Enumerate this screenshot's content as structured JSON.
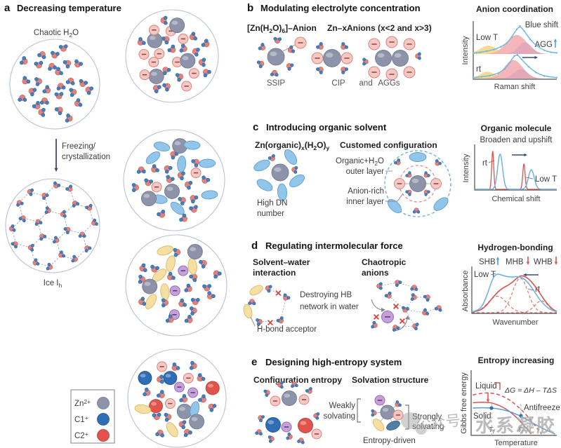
{
  "colors": {
    "zn_fill": "#8d94a9",
    "zn_stroke": "#70798f",
    "c1_fill": "#2f6db5",
    "c1_stroke": "#24568f",
    "c2_fill": "#e0544c",
    "c2_stroke": "#b93f39",
    "water_o": "#e0837e",
    "water_o_stroke": "#c2655f",
    "water_h": "#4181c2",
    "water_h_stroke": "#2f63a0",
    "anion_pink": "#f6c8c3",
    "anion_pink_stroke": "#dd837d",
    "minus_pink": "#8a423c",
    "anion_purple": "#c6a0d8",
    "anion_purple_stroke": "#9a6cb8",
    "minus_purple": "#533b66",
    "oval_blue": "#92c5ea",
    "oval_blue_stroke": "#5f9fd0",
    "oval_yellow": "#f5dfa2",
    "oval_yellow_stroke": "#dcb964",
    "oval_dark": "#4e7fa5",
    "oval_dark_stroke": "#35607f",
    "circle_stroke": "#b9c3d4",
    "bond": "#9fb0c8",
    "pointer": "#8a8a8a",
    "navy": "#3c4a70",
    "xmark": "#d9413a",
    "curve_blue": "#6fb3e0",
    "curve_red": "#d9534f",
    "blue_arrow": "#4a9ede",
    "fill_pink": "#f2aeb4",
    "fill_yellow": "#f3d98e",
    "fill_mauve": "#d8a0b8",
    "axis": "#4d4d4d",
    "dash_blue": "#66aede",
    "dash_red": "#e08a85",
    "dot_blue": "#2f6db5",
    "bracket_red": "#b5413c",
    "watermark": "#a8a8a8"
  },
  "panel_a": {
    "tag": "a",
    "title": "Decreasing temperature",
    "chaotic": {
      "main": "Chaotic H",
      "sub": "2",
      "end": "O"
    },
    "freezing": [
      "Freezing/",
      "crystallization"
    ],
    "ice": {
      "main": "Ice I",
      "sub": "h"
    },
    "legend": [
      {
        "base": "Zn",
        "sup": "2+",
        "color": "#8d94a9"
      },
      {
        "base": "C1",
        "sup": "+",
        "color": "#2f6db5"
      },
      {
        "base": "C2",
        "sup": "+",
        "color": "#e0544c"
      }
    ]
  },
  "panel_b": {
    "tag": "b",
    "title": "Modulating electrolyte concentration",
    "formula1": {
      "p1": "[Zn(H",
      "s1": "2",
      "p2": "O)",
      "s2": "6",
      "p3": "]–Anion"
    },
    "formula2": "Zn–xAnions (x<2 and x>3)",
    "ssip": "SSIP",
    "cip": "CIP",
    "and": "and",
    "aggs": "AGGs",
    "chart": {
      "title": "Anion coordination",
      "ylabel": "Intensity",
      "xlabel": "Raman shift",
      "low_t": "Low T",
      "rt": "rt",
      "blue_shift": "Blue shift",
      "agg": "AGG"
    }
  },
  "panel_c": {
    "tag": "c",
    "title": "Introducing organic solvent",
    "formula": {
      "p1": "Zn(organic)",
      "s1": "x",
      "p2": "(H",
      "s2": "2",
      "p3": "O)",
      "s3": "y"
    },
    "customed": "Customed configuration",
    "high_dn": [
      "High DN",
      "number"
    ],
    "outer_layer": {
      "l1a": "Organic+H",
      "l1s": "2",
      "l1b": "O",
      "l2": "outer layer"
    },
    "inner_layer": {
      "l1": "Anion-rich",
      "l2": "inner layer"
    },
    "chart": {
      "title": "Organic molecule",
      "subtitle": "Broaden and upshift",
      "ylabel": "Intensity",
      "xlabel": "Chemical shift",
      "rt": "rt",
      "low_t": "Low T"
    }
  },
  "panel_d": {
    "tag": "d",
    "title": "Regulating intermolecular force",
    "solvent_water": [
      "Solvent–water",
      "interaction"
    ],
    "chaotropic": [
      "Chaotropic",
      "anions"
    ],
    "destroying": [
      "Destroying HB",
      "network in water"
    ],
    "acceptor": "H-bond acceptor",
    "chart": {
      "title": "Hydrogen-bonding",
      "shb": "SHB",
      "mhb": "MHB",
      "whb": "WHB",
      "ylabel": "Absorbance",
      "xlabel": "Wavenumber",
      "low_t": "Low T",
      "rt": "rt"
    }
  },
  "panel_e": {
    "tag": "e",
    "title": "Designing high-entropy system",
    "config": "Configuration entropy",
    "solvation": "Solvation structure",
    "weakly": [
      "Weakly",
      "solvating"
    ],
    "strongly": [
      "Strongly",
      "solvating"
    ],
    "entropy_driven": "Entropy-driven",
    "chart": {
      "title": "Entropy increasing",
      "ylabel": "Gibbs free energy",
      "xlabel": "Temperature",
      "liquid": "Liquid",
      "solid": "Solid",
      "antifreeze": "Antifreeze",
      "equation": "ΔG = ΔH – TΔS",
      "t1": {
        "base": "T",
        "sub": "f"
      },
      "t2": {
        "base": "T",
        "sub": "f'"
      }
    }
  },
  "watermark": {
    "badge": "公众号",
    "brand": "水系凝胶"
  },
  "chart_data": [
    {
      "type": "line",
      "title": "Anion coordination",
      "xlabel": "Raman shift",
      "ylabel": "Intensity",
      "traces": [
        {
          "name": "Low T",
          "points": [
            [
              0,
              0.03
            ],
            [
              0.08,
              0.06
            ],
            [
              0.16,
              0.1
            ],
            [
              0.25,
              0.16
            ],
            [
              0.33,
              0.25
            ],
            [
              0.4,
              0.38
            ],
            [
              0.46,
              0.6
            ],
            [
              0.52,
              0.88
            ],
            [
              0.56,
              1.0
            ],
            [
              0.61,
              0.82
            ],
            [
              0.68,
              0.52
            ],
            [
              0.76,
              0.28
            ],
            [
              0.85,
              0.13
            ],
            [
              0.93,
              0.06
            ],
            [
              1,
              0.04
            ]
          ],
          "fills": [
            {
              "c": 0.18,
              "s": 0.1,
              "a": 0.3,
              "color": "yellow"
            },
            {
              "c": 0.52,
              "s": 0.12,
              "a": 0.68,
              "color": "pink"
            },
            {
              "c": 0.62,
              "s": 0.08,
              "a": 0.42,
              "color": "mauve"
            }
          ]
        },
        {
          "name": "rt",
          "points": [
            [
              0,
              0.04
            ],
            [
              0.1,
              0.07
            ],
            [
              0.2,
              0.12
            ],
            [
              0.3,
              0.22
            ],
            [
              0.38,
              0.4
            ],
            [
              0.44,
              0.68
            ],
            [
              0.49,
              0.95
            ],
            [
              0.53,
              1.0
            ],
            [
              0.58,
              0.8
            ],
            [
              0.66,
              0.5
            ],
            [
              0.75,
              0.25
            ],
            [
              0.85,
              0.1
            ],
            [
              1,
              0.04
            ]
          ],
          "fills": [
            {
              "c": 0.17,
              "s": 0.09,
              "a": 0.28,
              "color": "yellow"
            },
            {
              "c": 0.48,
              "s": 0.11,
              "a": 0.78,
              "color": "pink"
            },
            {
              "c": 0.57,
              "s": 0.08,
              "a": 0.4,
              "color": "mauve"
            }
          ]
        }
      ],
      "annotations": [
        "Blue shift",
        "AGG ↑"
      ],
      "legend_position": "inside"
    },
    {
      "type": "line",
      "title": "Organic molecule",
      "subtitle": "Broaden and upshift",
      "xlabel": "Chemical shift",
      "ylabel": "Intensity",
      "series": [
        {
          "name": "rt",
          "color": "red",
          "peaks": [
            {
              "c": 0.22,
              "s": 0.012,
              "a": 1.0
            },
            {
              "c": 0.6,
              "s": 0.014,
              "a": 0.66
            }
          ]
        },
        {
          "name": "Low T",
          "color": "blue",
          "peaks": [
            {
              "c": 0.31,
              "s": 0.03,
              "a": 0.9
            },
            {
              "c": 0.69,
              "s": 0.035,
              "a": 0.5
            }
          ]
        }
      ],
      "annotations": [
        "shift right arrow"
      ]
    },
    {
      "type": "line",
      "title": "Hydrogen-bonding",
      "xlabel": "Wavenumber",
      "ylabel": "Absorbance",
      "series": [
        {
          "name": "Low T",
          "color": "blue",
          "points": [
            [
              0,
              0.02
            ],
            [
              0.06,
              0.05
            ],
            [
              0.12,
              0.15
            ],
            [
              0.18,
              0.45
            ],
            [
              0.24,
              0.85
            ],
            [
              0.29,
              1.0
            ],
            [
              0.36,
              0.95
            ],
            [
              0.45,
              0.9
            ],
            [
              0.55,
              0.93
            ],
            [
              0.63,
              0.85
            ],
            [
              0.72,
              0.6
            ],
            [
              0.8,
              0.32
            ],
            [
              0.9,
              0.1
            ],
            [
              1,
              0.02
            ]
          ]
        },
        {
          "name": "rt",
          "color": "red",
          "points": [
            [
              0,
              0.02
            ],
            [
              0.08,
              0.04
            ],
            [
              0.16,
              0.15
            ],
            [
              0.25,
              0.4
            ],
            [
              0.35,
              0.62
            ],
            [
              0.45,
              0.72
            ],
            [
              0.55,
              0.92
            ],
            [
              0.6,
              0.95
            ],
            [
              0.68,
              0.85
            ],
            [
              0.77,
              0.6
            ],
            [
              0.86,
              0.3
            ],
            [
              0.94,
              0.1
            ],
            [
              1,
              0.03
            ]
          ]
        }
      ],
      "components": [
        {
          "c": 0.3,
          "s": 0.11,
          "a": 0.42
        },
        {
          "c": 0.57,
          "s": 0.09,
          "a": 0.88
        },
        {
          "c": 0.82,
          "s": 0.08,
          "a": 0.3
        }
      ],
      "annotations": [
        "SHB up (blue)",
        "MHB down (red)",
        "WHB down (red)"
      ]
    },
    {
      "type": "line",
      "title": "Entropy increasing",
      "xlabel": "Temperature",
      "ylabel": "Gibbs free energy",
      "equation": "ΔG = ΔH – TΔS",
      "series": [
        {
          "name": "Liquid",
          "color": "red",
          "style": "dashed",
          "points": [
            [
              0.02,
              0.62
            ],
            [
              0.15,
              0.66
            ],
            [
              0.3,
              0.64
            ],
            [
              0.45,
              0.55
            ],
            [
              0.6,
              0.38
            ],
            [
              0.72,
              0.2
            ],
            [
              0.82,
              0.02
            ]
          ]
        },
        {
          "name": "Solid",
          "color": "red",
          "style": "solid",
          "points": [
            [
              0.02,
              0.5
            ],
            [
              0.18,
              0.52
            ],
            [
              0.34,
              0.46
            ],
            [
              0.48,
              0.34
            ],
            [
              0.6,
              0.18
            ],
            [
              0.7,
              0.02
            ]
          ]
        },
        {
          "name": "Antifreeze",
          "color": "blue",
          "style": "solid",
          "points": [
            [
              0.02,
              0.42
            ],
            [
              0.2,
              0.43
            ],
            [
              0.4,
              0.39
            ],
            [
              0.58,
              0.3
            ],
            [
              0.78,
              0.14
            ],
            [
              0.98,
              0.02
            ]
          ]
        }
      ],
      "markers_x": [
        0.24,
        0.58
      ]
    }
  ]
}
